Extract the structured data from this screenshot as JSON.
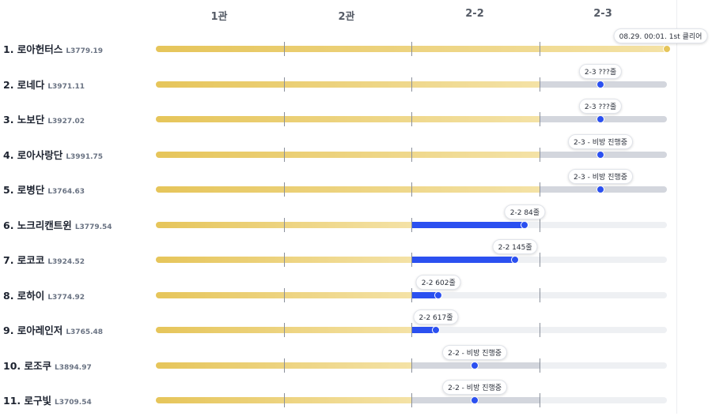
{
  "columns": [
    "1관",
    "2관",
    "2-2",
    "2-3"
  ],
  "colors": {
    "gold": "#e6c55a",
    "gold_light": "#f4e2a6",
    "blue": "#2b50f0",
    "grey": "#d3d6dd",
    "empty": "#eef0f3"
  },
  "rows": [
    {
      "rank_name": "1. 로아헌터스",
      "level": "L3779.19",
      "progress": 1.0,
      "style": "done",
      "bubble": "08.29. 00:01. 1st 클리어"
    },
    {
      "rank_name": "2. 로네다",
      "level": "L3971.11",
      "progress": 0.87,
      "style": "grey3",
      "bubble": "2-3 ???줄"
    },
    {
      "rank_name": "3. 노보단",
      "level": "L3927.02",
      "progress": 0.87,
      "style": "grey3",
      "bubble": "2-3 ???줄"
    },
    {
      "rank_name": "4. 로아사랑단",
      "level": "L3991.75",
      "progress": 0.87,
      "style": "grey3",
      "bubble": "2-3 - 비방 진행중"
    },
    {
      "rank_name": "5. 로병단",
      "level": "L3764.63",
      "progress": 0.87,
      "style": "grey3",
      "bubble": "2-3 - 비방 진행중"
    },
    {
      "rank_name": "6. 노크리캔트윈",
      "level": "L3779.54",
      "progress": 0.722,
      "style": "blue2",
      "bubble": "2-2 84줄"
    },
    {
      "rank_name": "7. 로코코",
      "level": "L3924.52",
      "progress": 0.703,
      "style": "blue2",
      "bubble": "2-2 145줄"
    },
    {
      "rank_name": "8. 로하이",
      "level": "L3774.92",
      "progress": 0.553,
      "style": "blue2",
      "bubble": "2-2 602줄"
    },
    {
      "rank_name": "9. 로아레인저",
      "level": "L3765.48",
      "progress": 0.548,
      "style": "blue2",
      "bubble": "2-2 617줄"
    },
    {
      "rank_name": "10. 로조쿠",
      "level": "L3894.97",
      "progress": 0.624,
      "style": "grey2",
      "bubble": "2-2 - 비방 진행중"
    },
    {
      "rank_name": "11. 로구빛",
      "level": "L3709.54",
      "progress": 0.624,
      "style": "grey2",
      "bubble": "2-2 - 비방 진행중"
    }
  ]
}
